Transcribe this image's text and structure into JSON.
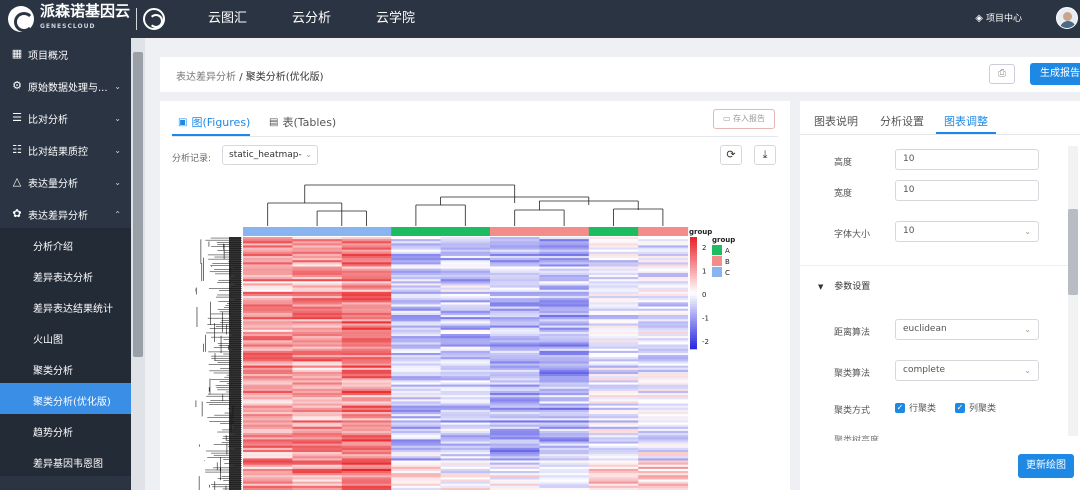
{
  "header": {
    "logo_text": "派森诺基因云",
    "logo_sub": "GENESCLOUD",
    "nav": [
      "云图汇",
      "云分析",
      "云学院"
    ],
    "project_center": "项目中心"
  },
  "sidebar": {
    "items": [
      {
        "label": "项目概况",
        "icon": "grid-icon"
      },
      {
        "label": "原始数据处理与...",
        "icon": "gear-icon"
      },
      {
        "label": "比对分析",
        "icon": "list-icon"
      },
      {
        "label": "比对结果质控",
        "icon": "check-list-icon"
      },
      {
        "label": "表达量分析",
        "icon": "triangle-icon"
      },
      {
        "label": "表达差异分析",
        "icon": "cluster-icon"
      }
    ],
    "subitems": [
      "分析介绍",
      "差异表达分析",
      "差异表达结果统计",
      "火山图",
      "聚类分析",
      "聚类分析(优化版)",
      "趋势分析",
      "差异基因韦恩图"
    ],
    "active_sub": "聚类分析(优化版)"
  },
  "breadcrumb": {
    "parent": "表达差异分析",
    "separator": "/",
    "current": "聚类分析(优化版)",
    "generate_report": "生成报告"
  },
  "leftpanel": {
    "tab_figures": "图(Figures)",
    "tab_tables": "表(Tables)",
    "save_report": "存入报告",
    "record_label": "分析记录:",
    "record_value": "static_heatmap-"
  },
  "heatmap": {
    "legend_group_label": "group",
    "groups": [
      {
        "name": "A",
        "color": "#1ebc61"
      },
      {
        "name": "B",
        "color": "#f58c8c"
      },
      {
        "name": "C",
        "color": "#8ab4f0"
      }
    ],
    "column_groups": [
      "C",
      "C",
      "C",
      "A",
      "A",
      "B",
      "B",
      "A",
      "B"
    ],
    "colorbar_ticks": [
      "2",
      "1",
      "0",
      "-1",
      "-2"
    ],
    "colorbar_top_label": "group",
    "color_high": "#e8262b",
    "color_mid": "#ffffff",
    "color_low": "#2a2ae0"
  },
  "rightpanel": {
    "tabs": [
      "图表说明",
      "分析设置",
      "图表调整"
    ],
    "active_tab": "图表调整",
    "height_label": "高度",
    "height_value": "10",
    "width_label": "宽度",
    "width_value": "10",
    "font_label": "字体大小",
    "font_value": "10",
    "section": "参数设置",
    "distance_label": "距离算法",
    "distance_value": "euclidean",
    "cluster_label": "聚类算法",
    "cluster_value": "complete",
    "mode_label": "聚类方式",
    "row_cluster": "行聚类",
    "col_cluster": "列聚类",
    "cut_text": "聚类树高度",
    "update_button": "更新绘图"
  }
}
